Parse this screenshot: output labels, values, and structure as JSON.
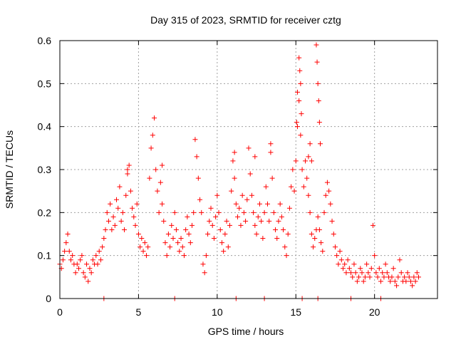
{
  "chart_data": {
    "type": "scatter",
    "title": "Day 315 of 2023, SRMTID for receiver cztg",
    "xlabel": "GPS time / hours",
    "ylabel": "SRMTID / TECUs",
    "xlim": [
      0,
      24
    ],
    "ylim": [
      0,
      0.6
    ],
    "xticks": [
      0,
      5,
      10,
      15,
      20
    ],
    "xtick_labels": [
      "0",
      "5",
      "10",
      "15",
      "20"
    ],
    "yticks": [
      0,
      0.1,
      0.2,
      0.3,
      0.4,
      0.5,
      0.6
    ],
    "ytick_labels": [
      "0",
      "0.1",
      "0.2",
      "0.3",
      "0.4",
      "0.5",
      "0.6"
    ],
    "grid": true,
    "marker": "plus",
    "marker_color": "#ff0000",
    "series": [
      {
        "name": "SRMTID",
        "points": [
          [
            0.0,
            0.08
          ],
          [
            0.1,
            0.07
          ],
          [
            0.2,
            0.09
          ],
          [
            0.3,
            0.11
          ],
          [
            0.4,
            0.13
          ],
          [
            0.5,
            0.15
          ],
          [
            0.6,
            0.11
          ],
          [
            0.7,
            0.09
          ],
          [
            0.8,
            0.1
          ],
          [
            0.9,
            0.08
          ],
          [
            1.0,
            0.06
          ],
          [
            1.1,
            0.08
          ],
          [
            1.2,
            0.07
          ],
          [
            1.3,
            0.09
          ],
          [
            1.4,
            0.1
          ],
          [
            1.5,
            0.06
          ],
          [
            1.6,
            0.05
          ],
          [
            1.7,
            0.08
          ],
          [
            1.8,
            0.04
          ],
          [
            1.9,
            0.07
          ],
          [
            2.0,
            0.06
          ],
          [
            2.1,
            0.09
          ],
          [
            2.2,
            0.08
          ],
          [
            2.3,
            0.1
          ],
          [
            2.4,
            0.08
          ],
          [
            2.5,
            0.11
          ],
          [
            2.6,
            0.09
          ],
          [
            2.7,
            0.12
          ],
          [
            2.8,
            0.14
          ],
          [
            2.9,
            0.16
          ],
          [
            3.0,
            0.2
          ],
          [
            3.1,
            0.18
          ],
          [
            3.2,
            0.22
          ],
          [
            3.3,
            0.16
          ],
          [
            3.4,
            0.19
          ],
          [
            3.5,
            0.17
          ],
          [
            3.6,
            0.23
          ],
          [
            3.7,
            0.21
          ],
          [
            3.8,
            0.26
          ],
          [
            3.9,
            0.18
          ],
          [
            4.0,
            0.2
          ],
          [
            4.1,
            0.16
          ],
          [
            4.2,
            0.24
          ],
          [
            4.3,
            0.29
          ],
          [
            4.4,
            0.31
          ],
          [
            4.5,
            0.25
          ],
          [
            4.6,
            0.21
          ],
          [
            4.7,
            0.19
          ],
          [
            4.8,
            0.17
          ],
          [
            4.9,
            0.22
          ],
          [
            5.0,
            0.15
          ],
          [
            5.1,
            0.12
          ],
          [
            5.2,
            0.14
          ],
          [
            5.3,
            0.11
          ],
          [
            5.4,
            0.13
          ],
          [
            5.5,
            0.1
          ],
          [
            5.6,
            0.12
          ],
          [
            5.7,
            0.28
          ],
          [
            5.8,
            0.35
          ],
          [
            5.9,
            0.38
          ],
          [
            6.0,
            0.42
          ],
          [
            6.1,
            0.3
          ],
          [
            6.2,
            0.25
          ],
          [
            6.3,
            0.2
          ],
          [
            6.4,
            0.27
          ],
          [
            6.5,
            0.22
          ],
          [
            6.6,
            0.18
          ],
          [
            6.7,
            0.13
          ],
          [
            6.8,
            0.1
          ],
          [
            6.9,
            0.15
          ],
          [
            7.0,
            0.12
          ],
          [
            7.1,
            0.17
          ],
          [
            7.2,
            0.14
          ],
          [
            7.3,
            0.2
          ],
          [
            7.4,
            0.16
          ],
          [
            7.5,
            0.13
          ],
          [
            7.6,
            0.11
          ],
          [
            7.7,
            0.14
          ],
          [
            7.8,
            0.12
          ],
          [
            7.9,
            0.1
          ],
          [
            8.0,
            0.16
          ],
          [
            8.1,
            0.19
          ],
          [
            8.2,
            0.15
          ],
          [
            8.3,
            0.13
          ],
          [
            8.4,
            0.17
          ],
          [
            8.5,
            0.2
          ],
          [
            8.6,
            0.37
          ],
          [
            8.7,
            0.33
          ],
          [
            8.8,
            0.28
          ],
          [
            8.9,
            0.23
          ],
          [
            9.0,
            0.2
          ],
          [
            9.1,
            0.08
          ],
          [
            9.2,
            0.06
          ],
          [
            9.3,
            0.1
          ],
          [
            9.4,
            0.15
          ],
          [
            9.5,
            0.18
          ],
          [
            9.6,
            0.21
          ],
          [
            9.7,
            0.17
          ],
          [
            9.8,
            0.14
          ],
          [
            9.9,
            0.19
          ],
          [
            10.0,
            0.24
          ],
          [
            10.1,
            0.2
          ],
          [
            10.2,
            0.16
          ],
          [
            10.3,
            0.13
          ],
          [
            10.4,
            0.11
          ],
          [
            10.5,
            0.15
          ],
          [
            10.6,
            0.18
          ],
          [
            10.7,
            0.12
          ],
          [
            10.8,
            0.17
          ],
          [
            10.9,
            0.25
          ],
          [
            11.0,
            0.32
          ],
          [
            11.1,
            0.28
          ],
          [
            11.2,
            0.22
          ],
          [
            11.3,
            0.19
          ],
          [
            11.4,
            0.21
          ],
          [
            11.5,
            0.17
          ],
          [
            11.6,
            0.24
          ],
          [
            11.7,
            0.2
          ],
          [
            11.8,
            0.18
          ],
          [
            11.9,
            0.23
          ],
          [
            12.0,
            0.35
          ],
          [
            12.1,
            0.29
          ],
          [
            12.2,
            0.24
          ],
          [
            12.3,
            0.2
          ],
          [
            12.4,
            0.17
          ],
          [
            12.5,
            0.15
          ],
          [
            12.6,
            0.19
          ],
          [
            12.7,
            0.22
          ],
          [
            12.8,
            0.18
          ],
          [
            12.9,
            0.14
          ],
          [
            13.0,
            0.2
          ],
          [
            13.1,
            0.26
          ],
          [
            13.2,
            0.22
          ],
          [
            13.3,
            0.18
          ],
          [
            13.4,
            0.34
          ],
          [
            13.5,
            0.28
          ],
          [
            13.6,
            0.2
          ],
          [
            13.7,
            0.16
          ],
          [
            13.8,
            0.14
          ],
          [
            13.9,
            0.18
          ],
          [
            14.0,
            0.22
          ],
          [
            14.1,
            0.19
          ],
          [
            14.2,
            0.16
          ],
          [
            14.3,
            0.12
          ],
          [
            14.4,
            0.1
          ],
          [
            14.5,
            0.15
          ],
          [
            14.6,
            0.21
          ],
          [
            14.7,
            0.26
          ],
          [
            14.8,
            0.3
          ],
          [
            14.9,
            0.25
          ],
          [
            15.0,
            0.32
          ],
          [
            15.1,
            0.4
          ],
          [
            15.2,
            0.46
          ],
          [
            15.3,
            0.38
          ],
          [
            15.4,
            0.3
          ],
          [
            15.5,
            0.26
          ],
          [
            15.6,
            0.32
          ],
          [
            15.7,
            0.28
          ],
          [
            15.8,
            0.24
          ],
          [
            15.9,
            0.2
          ],
          [
            16.0,
            0.15
          ],
          [
            16.1,
            0.12
          ],
          [
            16.2,
            0.14
          ],
          [
            16.3,
            0.16
          ],
          [
            16.4,
            0.19
          ],
          [
            16.5,
            0.16
          ],
          [
            16.6,
            0.13
          ],
          [
            16.7,
            0.11
          ],
          [
            16.8,
            0.2
          ],
          [
            16.9,
            0.24
          ],
          [
            17.0,
            0.27
          ],
          [
            17.1,
            0.25
          ],
          [
            17.2,
            0.22
          ],
          [
            17.3,
            0.18
          ],
          [
            17.4,
            0.15
          ],
          [
            17.5,
            0.12
          ],
          [
            17.6,
            0.1
          ],
          [
            17.7,
            0.08
          ],
          [
            17.8,
            0.11
          ],
          [
            17.9,
            0.09
          ],
          [
            18.0,
            0.07
          ],
          [
            18.1,
            0.08
          ],
          [
            18.2,
            0.06
          ],
          [
            18.3,
            0.09
          ],
          [
            18.4,
            0.07
          ],
          [
            18.5,
            0.06
          ],
          [
            18.6,
            0.05
          ],
          [
            18.7,
            0.08
          ],
          [
            18.8,
            0.06
          ],
          [
            18.9,
            0.04
          ],
          [
            19.0,
            0.05
          ],
          [
            19.1,
            0.07
          ],
          [
            19.2,
            0.06
          ],
          [
            19.3,
            0.04
          ],
          [
            19.4,
            0.05
          ],
          [
            19.5,
            0.08
          ],
          [
            19.6,
            0.06
          ],
          [
            19.7,
            0.05
          ],
          [
            19.8,
            0.07
          ],
          [
            19.9,
            0.17
          ],
          [
            20.0,
            0.1
          ],
          [
            20.1,
            0.06
          ],
          [
            20.2,
            0.05
          ],
          [
            20.3,
            0.07
          ],
          [
            20.4,
            0.04
          ],
          [
            20.5,
            0.06
          ],
          [
            20.6,
            0.05
          ],
          [
            20.7,
            0.08
          ],
          [
            20.8,
            0.06
          ],
          [
            20.9,
            0.05
          ],
          [
            21.0,
            0.04
          ],
          [
            21.1,
            0.05
          ],
          [
            21.2,
            0.07
          ],
          [
            21.3,
            0.04
          ],
          [
            21.4,
            0.03
          ],
          [
            21.5,
            0.05
          ],
          [
            21.6,
            0.09
          ],
          [
            21.7,
            0.06
          ],
          [
            21.8,
            0.04
          ],
          [
            21.9,
            0.05
          ],
          [
            22.0,
            0.04
          ],
          [
            22.1,
            0.06
          ],
          [
            22.2,
            0.05
          ],
          [
            22.3,
            0.04
          ],
          [
            22.4,
            0.03
          ],
          [
            22.5,
            0.05
          ],
          [
            22.6,
            0.04
          ],
          [
            22.7,
            0.06
          ],
          [
            22.8,
            0.05
          ],
          [
            15.2,
            0.56
          ],
          [
            15.25,
            0.53
          ],
          [
            15.3,
            0.5
          ],
          [
            15.1,
            0.48
          ],
          [
            15.35,
            0.43
          ],
          [
            15.05,
            0.41
          ],
          [
            16.3,
            0.59
          ],
          [
            16.35,
            0.55
          ],
          [
            16.4,
            0.5
          ],
          [
            16.45,
            0.46
          ],
          [
            16.5,
            0.41
          ],
          [
            16.55,
            0.36
          ],
          [
            15.8,
            0.33
          ],
          [
            15.9,
            0.36
          ],
          [
            16.0,
            0.32
          ],
          [
            12.4,
            0.33
          ],
          [
            13.4,
            0.36
          ],
          [
            11.1,
            0.34
          ],
          [
            6.5,
            0.31
          ],
          [
            4.3,
            0.3
          ],
          [
            2.8,
            0.0
          ],
          [
            7.3,
            0.0
          ],
          [
            11.2,
            0.0
          ],
          [
            13.0,
            0.0
          ],
          [
            15.4,
            0.0
          ],
          [
            16.4,
            0.0
          ],
          [
            18.5,
            0.0
          ],
          [
            20.4,
            0.0
          ]
        ]
      }
    ]
  }
}
